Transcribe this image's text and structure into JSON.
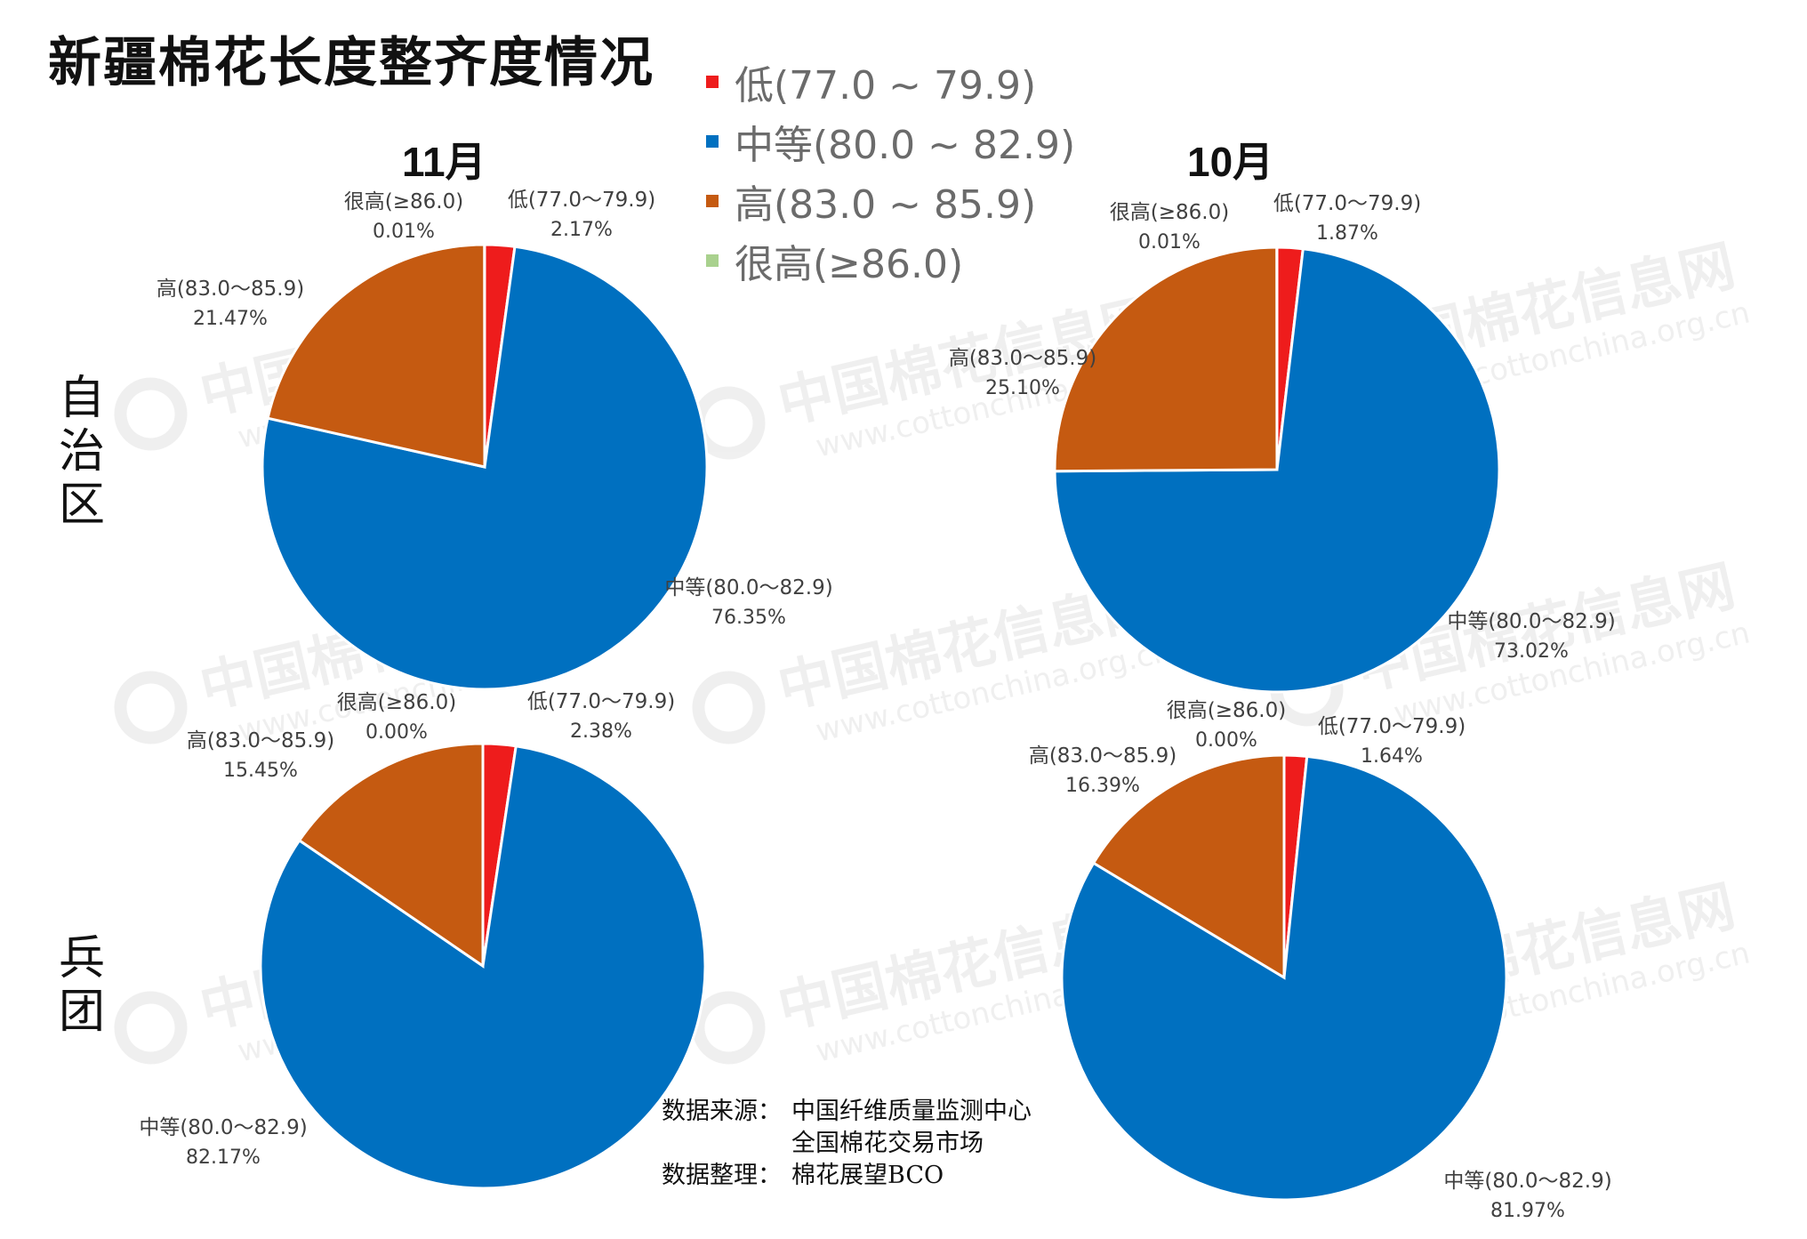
{
  "title": "新疆棉花长度整齐度情况",
  "legend": [
    {
      "label": "低(77.0 ~ 79.9)",
      "color": "#ee1c1c"
    },
    {
      "label": "中等(80.0 ~ 82.9)",
      "color": "#0070c0"
    },
    {
      "label": "高(83.0 ~ 85.9)",
      "color": "#c55a11"
    },
    {
      "label": "很高(≥86.0)",
      "color": "#a9d18e"
    }
  ],
  "months": {
    "left": "11月",
    "right": "10月"
  },
  "row_labels": {
    "top": "自治区",
    "bottom": "兵团"
  },
  "source": {
    "rows": [
      {
        "key": "数据来源：",
        "value": "中国纤维质量监测中心"
      },
      {
        "key": "",
        "value": "全国棉花交易市场"
      },
      {
        "key": "数据整理：",
        "value": "棉花展望BCO"
      }
    ]
  },
  "watermark": {
    "text": "中国棉花信息网",
    "url": "www.cottonchina.org.cn"
  },
  "chart_data": [
    {
      "type": "pie",
      "group": "自治区",
      "month": "11月",
      "categories": [
        "低(77.0～79.9)",
        "中等(80.0～82.9)",
        "高(83.0～85.9)",
        "很高(≥86.0)"
      ],
      "values": [
        2.17,
        76.35,
        21.47,
        0.01
      ],
      "value_labels": [
        "2.17%",
        "76.35%",
        "21.47%",
        "0.01%"
      ],
      "colors": [
        "#ee1c1c",
        "#0070c0",
        "#c55a11",
        "#a9d18e"
      ]
    },
    {
      "type": "pie",
      "group": "自治区",
      "month": "10月",
      "categories": [
        "低(77.0～79.9)",
        "中等(80.0～82.9)",
        "高(83.0～85.9)",
        "很高(≥86.0)"
      ],
      "values": [
        1.87,
        73.02,
        25.1,
        0.01
      ],
      "value_labels": [
        "1.87%",
        "73.02%",
        "25.10%",
        "0.01%"
      ],
      "colors": [
        "#ee1c1c",
        "#0070c0",
        "#c55a11",
        "#a9d18e"
      ]
    },
    {
      "type": "pie",
      "group": "兵团",
      "month": "11月",
      "categories": [
        "低(77.0～79.9)",
        "中等(80.0～82.9)",
        "高(83.0～85.9)",
        "很高(≥86.0)"
      ],
      "values": [
        2.38,
        82.17,
        15.45,
        0.0
      ],
      "value_labels": [
        "2.38%",
        "82.17%",
        "15.45%",
        "0.00%"
      ],
      "colors": [
        "#ee1c1c",
        "#0070c0",
        "#c55a11",
        "#a9d18e"
      ]
    },
    {
      "type": "pie",
      "group": "兵团",
      "month": "10月",
      "categories": [
        "低(77.0～79.9)",
        "中等(80.0～82.9)",
        "高(83.0～85.9)",
        "很高(≥86.0)"
      ],
      "values": [
        1.64,
        81.97,
        16.39,
        0.0
      ],
      "value_labels": [
        "1.64%",
        "81.97%",
        "16.39%",
        "0.00%"
      ],
      "colors": [
        "#ee1c1c",
        "#0070c0",
        "#c55a11",
        "#a9d18e"
      ]
    }
  ]
}
